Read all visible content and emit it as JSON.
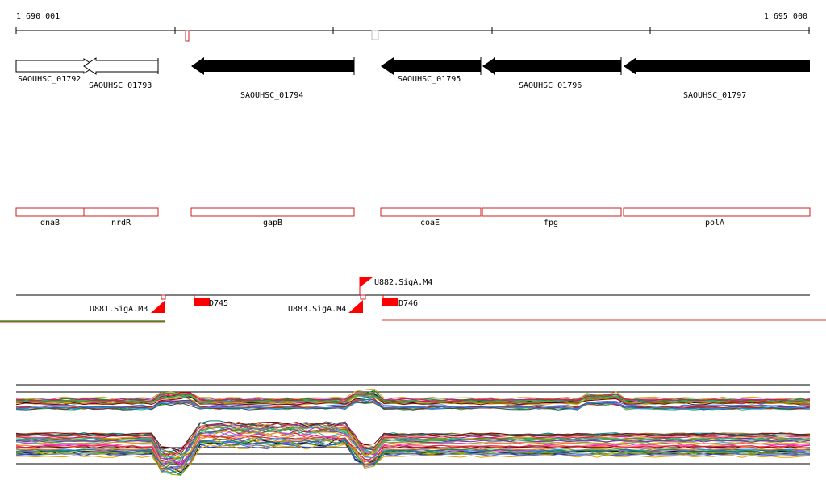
{
  "ruler": {
    "start_label": "1 690 001",
    "end_label": "1 695 000"
  },
  "colors": {
    "gene_fill": "#000000",
    "feature_outline": "#c82020",
    "marker_red": "#ff0000",
    "axis_line": "#000000",
    "signal_green": "#2a9a2a",
    "signal_red": "#d43a2a"
  },
  "loci": [
    {
      "id": "SAOUHSC_01792",
      "strand": "+",
      "filled": false
    },
    {
      "id": "SAOUHSC_01793",
      "strand": "-",
      "filled": false
    },
    {
      "id": "SAOUHSC_01794",
      "strand": "-",
      "filled": true
    },
    {
      "id": "SAOUHSC_01795",
      "strand": "-",
      "filled": true
    },
    {
      "id": "SAOUHSC_01796",
      "strand": "-",
      "filled": true
    },
    {
      "id": "SAOUHSC_01797",
      "strand": "-",
      "filled": true
    }
  ],
  "genes": [
    {
      "name": "dnaB"
    },
    {
      "name": "nrdR"
    },
    {
      "name": "gapB"
    },
    {
      "name": "coaE"
    },
    {
      "name": "fpg"
    },
    {
      "name": "polA"
    }
  ],
  "features": {
    "promoters": [
      {
        "label": "U881.SigA.M3"
      },
      {
        "label": "U883.SigA.M4"
      },
      {
        "label": "U882.SigA.M4"
      }
    ],
    "terminators": [
      {
        "label": "D745"
      },
      {
        "label": "D746"
      }
    ]
  }
}
